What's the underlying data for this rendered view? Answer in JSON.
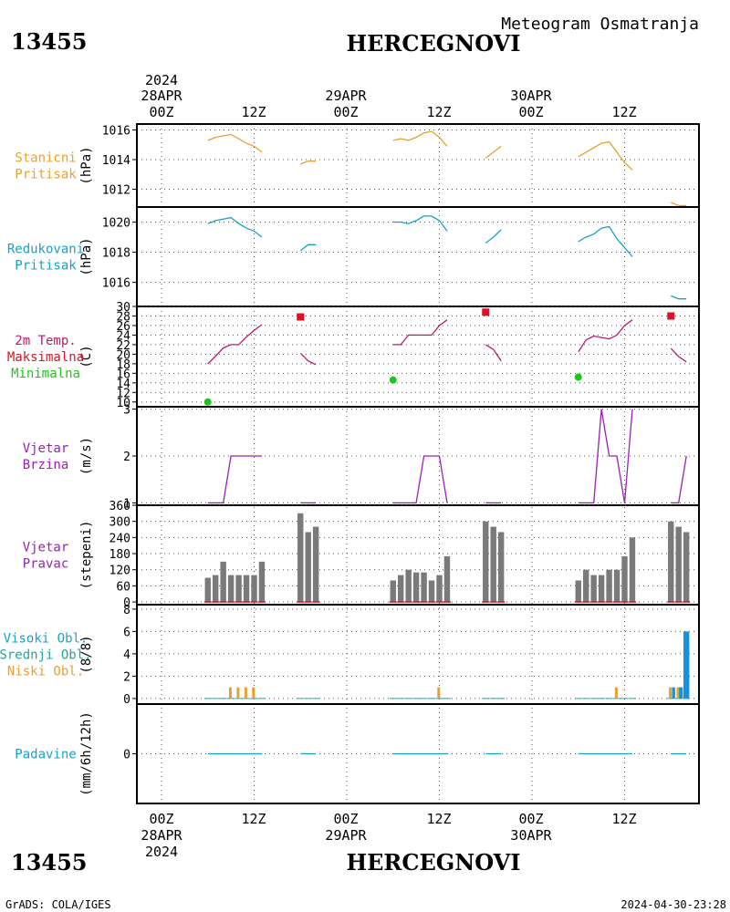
{
  "header": {
    "station_id": "13455",
    "station_name": "HERCEGNOVI",
    "product": "Meteogram Osmatranja",
    "year_top": "2024",
    "date_labels": [
      "28APR",
      "29APR",
      "30APR"
    ],
    "time_labels": [
      "00Z",
      "12Z",
      "00Z",
      "12Z",
      "00Z",
      "12Z"
    ]
  },
  "footer": {
    "station_id": "13455",
    "station_name": "HERCEGNOVI",
    "credit": "GrADS: COLA/IGES",
    "timestamp": "2024-04-30-23:28",
    "year_bottom": "2024"
  },
  "colors": {
    "orange": "#e8a030",
    "cyan": "#1aa0c8",
    "magenta": "#c0186a",
    "red": "#e01020",
    "green": "#18c818",
    "purple": "#9a20b8",
    "gray": "#7a7a7a",
    "blue": "#1890e0",
    "teal": "#18a8a0"
  },
  "chart_data": [
    {
      "type": "line",
      "panel": "station_pressure",
      "legend": [
        "Stanicni",
        "Pritisak"
      ],
      "ylabel": "(hPa)",
      "ylim": [
        1010.8,
        1016.4
      ],
      "yticks": [
        1012,
        1014,
        1016
      ],
      "x_unit": "hours since 28APR 00Z",
      "segments": [
        {
          "x": [
            6,
            7,
            8,
            9,
            10,
            11,
            12,
            13
          ],
          "y": [
            1015.3,
            1015.5,
            1015.6,
            1015.7,
            1015.4,
            1015.1,
            1014.9,
            1014.5
          ]
        },
        {
          "x": [
            18,
            19,
            20
          ],
          "y": [
            1013.7,
            1013.9,
            1013.9
          ]
        },
        {
          "x": [
            30,
            31,
            32,
            33,
            34,
            35,
            36,
            37
          ],
          "y": [
            1015.3,
            1015.4,
            1015.3,
            1015.5,
            1015.8,
            1015.9,
            1015.5,
            1014.9
          ]
        },
        {
          "x": [
            42,
            43,
            44
          ],
          "y": [
            1014.1,
            1014.5,
            1014.9
          ]
        },
        {
          "x": [
            54,
            55,
            56,
            57,
            58,
            59,
            60,
            61
          ],
          "y": [
            1014.2,
            1014.5,
            1014.8,
            1015.1,
            1015.2,
            1014.5,
            1013.8,
            1013.3
          ]
        },
        {
          "x": [
            66,
            67,
            68
          ],
          "y": [
            1011.1,
            1010.9,
            1010.9
          ]
        }
      ]
    },
    {
      "type": "line",
      "panel": "reduced_pressure",
      "legend": [
        "Redukovani",
        "Pritisak"
      ],
      "ylabel": "(hPa)",
      "ylim": [
        1014.4,
        1021.0
      ],
      "yticks": [
        1016,
        1018,
        1020
      ],
      "segments": [
        {
          "x": [
            6,
            7,
            8,
            9,
            10,
            11,
            12,
            13
          ],
          "y": [
            1019.9,
            1020.1,
            1020.2,
            1020.3,
            1019.9,
            1019.6,
            1019.4,
            1019.0
          ]
        },
        {
          "x": [
            18,
            19,
            20
          ],
          "y": [
            1018.1,
            1018.5,
            1018.5
          ]
        },
        {
          "x": [
            30,
            31,
            32,
            33,
            34,
            35,
            36,
            37
          ],
          "y": [
            1020.0,
            1020.0,
            1019.9,
            1020.1,
            1020.4,
            1020.4,
            1020.1,
            1019.4
          ]
        },
        {
          "x": [
            42,
            43,
            44
          ],
          "y": [
            1018.6,
            1019.0,
            1019.5
          ]
        },
        {
          "x": [
            54,
            55,
            56,
            57,
            58,
            59,
            60,
            61
          ],
          "y": [
            1018.7,
            1019.0,
            1019.2,
            1019.6,
            1019.7,
            1018.9,
            1018.3,
            1017.7
          ]
        },
        {
          "x": [
            66,
            67,
            68
          ],
          "y": [
            1015.1,
            1014.9,
            1014.9
          ]
        }
      ]
    },
    {
      "type": "line",
      "panel": "temperature",
      "legend": [
        "2m Temp.",
        "Maksimalna",
        "Minimalna"
      ],
      "ylabel": "(C)",
      "ylim": [
        9,
        30
      ],
      "yticks": [
        10,
        12,
        14,
        16,
        18,
        20,
        22,
        24,
        26,
        28,
        30
      ],
      "segments": [
        {
          "x": [
            6,
            7,
            8,
            9,
            10,
            11,
            12,
            13
          ],
          "y": [
            18.0,
            19.6,
            21.3,
            22.0,
            22.0,
            23.6,
            25.0,
            26.2
          ]
        },
        {
          "x": [
            18,
            19,
            20
          ],
          "y": [
            20.2,
            18.6,
            17.8
          ]
        },
        {
          "x": [
            30,
            31,
            32,
            33,
            34,
            35,
            36,
            37
          ],
          "y": [
            22.0,
            22.0,
            24.0,
            24.0,
            24.0,
            24.0,
            26.0,
            27.2
          ]
        },
        {
          "x": [
            42,
            43,
            44
          ],
          "y": [
            22.0,
            21.0,
            18.6
          ]
        },
        {
          "x": [
            54,
            55,
            56,
            57,
            58,
            59,
            60,
            61
          ],
          "y": [
            20.5,
            23.0,
            23.8,
            23.5,
            23.2,
            24.0,
            26.0,
            27.2
          ]
        },
        {
          "x": [
            66,
            67,
            68
          ],
          "y": [
            21.2,
            19.5,
            18.4
          ]
        }
      ],
      "maxima": {
        "x": [
          18,
          42,
          66
        ],
        "y": [
          27.8,
          28.8,
          28.0
        ]
      },
      "minima": {
        "x": [
          6,
          30,
          54
        ],
        "y": [
          10.0,
          14.6,
          15.2
        ]
      }
    },
    {
      "type": "line",
      "panel": "wind_speed",
      "legend": [
        "Vjetar",
        "Brzina"
      ],
      "ylabel": "(m/s)",
      "ylim": [
        0.95,
        3.05
      ],
      "yticks": [
        1,
        2,
        3
      ],
      "segments": [
        {
          "x": [
            6,
            7,
            8,
            9,
            10,
            11,
            12,
            13
          ],
          "y": [
            1,
            1,
            1,
            2,
            2,
            2,
            2,
            2
          ]
        },
        {
          "x": [
            18,
            19,
            20
          ],
          "y": [
            1,
            1,
            1
          ]
        },
        {
          "x": [
            30,
            31,
            32,
            33,
            34,
            35,
            36,
            37
          ],
          "y": [
            1,
            1,
            1,
            1,
            2,
            2,
            2,
            1
          ]
        },
        {
          "x": [
            42,
            43,
            44
          ],
          "y": [
            1,
            1,
            1
          ]
        },
        {
          "x": [
            54,
            55,
            56,
            57,
            58,
            59,
            60,
            61
          ],
          "y": [
            1,
            1,
            1,
            3,
            2,
            2,
            1,
            3
          ]
        },
        {
          "x": [
            66,
            67,
            68
          ],
          "y": [
            1,
            1,
            2
          ]
        }
      ]
    },
    {
      "type": "bar",
      "panel": "wind_direction",
      "legend": [
        "Vjetar",
        "Pravac"
      ],
      "ylabel": "(stepeni)",
      "ylim": [
        -10,
        360
      ],
      "yticks": [
        0,
        60,
        120,
        180,
        240,
        300,
        360
      ],
      "x": [
        6,
        7,
        8,
        9,
        10,
        11,
        12,
        13,
        18,
        19,
        20,
        30,
        31,
        32,
        33,
        34,
        35,
        36,
        37,
        42,
        43,
        44,
        54,
        55,
        56,
        57,
        58,
        59,
        60,
        61,
        66,
        67,
        68
      ],
      "values": [
        90,
        100,
        150,
        100,
        100,
        100,
        100,
        150,
        330,
        260,
        280,
        80,
        100,
        120,
        110,
        110,
        80,
        100,
        170,
        300,
        280,
        260,
        80,
        120,
        100,
        100,
        120,
        120,
        170,
        240,
        300,
        280,
        260
      ]
    },
    {
      "type": "bar",
      "panel": "cloud_cover",
      "legend": [
        "Visoki Obl.",
        "Srednji Obl.",
        "Niski Obl."
      ],
      "ylabel": "(8/8)",
      "ylim": [
        -0.5,
        8.4
      ],
      "yticks": [
        0,
        2,
        4,
        6,
        8
      ],
      "low_clouds": {
        "x": [
          9,
          10,
          11,
          12,
          36,
          59,
          66,
          67,
          68
        ],
        "values": [
          1,
          1,
          1,
          1,
          1,
          1,
          1,
          1,
          1
        ]
      },
      "middle_clouds": {
        "x": [
          67
        ],
        "values": [
          1
        ]
      },
      "high_clouds": {
        "x": [
          66,
          67,
          68
        ],
        "values": [
          1,
          1,
          6
        ]
      }
    },
    {
      "type": "line",
      "panel": "precipitation",
      "legend": [
        "Padavine"
      ],
      "ylabel": "(mm/6h/12h)",
      "ylim": [
        -1,
        1
      ],
      "yticks": [
        0
      ],
      "segments": [
        {
          "x": [
            6,
            13
          ],
          "y": [
            0,
            0
          ]
        },
        {
          "x": [
            18,
            20
          ],
          "y": [
            0,
            0
          ]
        },
        {
          "x": [
            30,
            37
          ],
          "y": [
            0,
            0
          ]
        },
        {
          "x": [
            42,
            44
          ],
          "y": [
            0,
            0
          ]
        },
        {
          "x": [
            54,
            61
          ],
          "y": [
            0,
            0
          ]
        },
        {
          "x": [
            66,
            68
          ],
          "y": [
            0,
            0
          ]
        }
      ]
    }
  ]
}
